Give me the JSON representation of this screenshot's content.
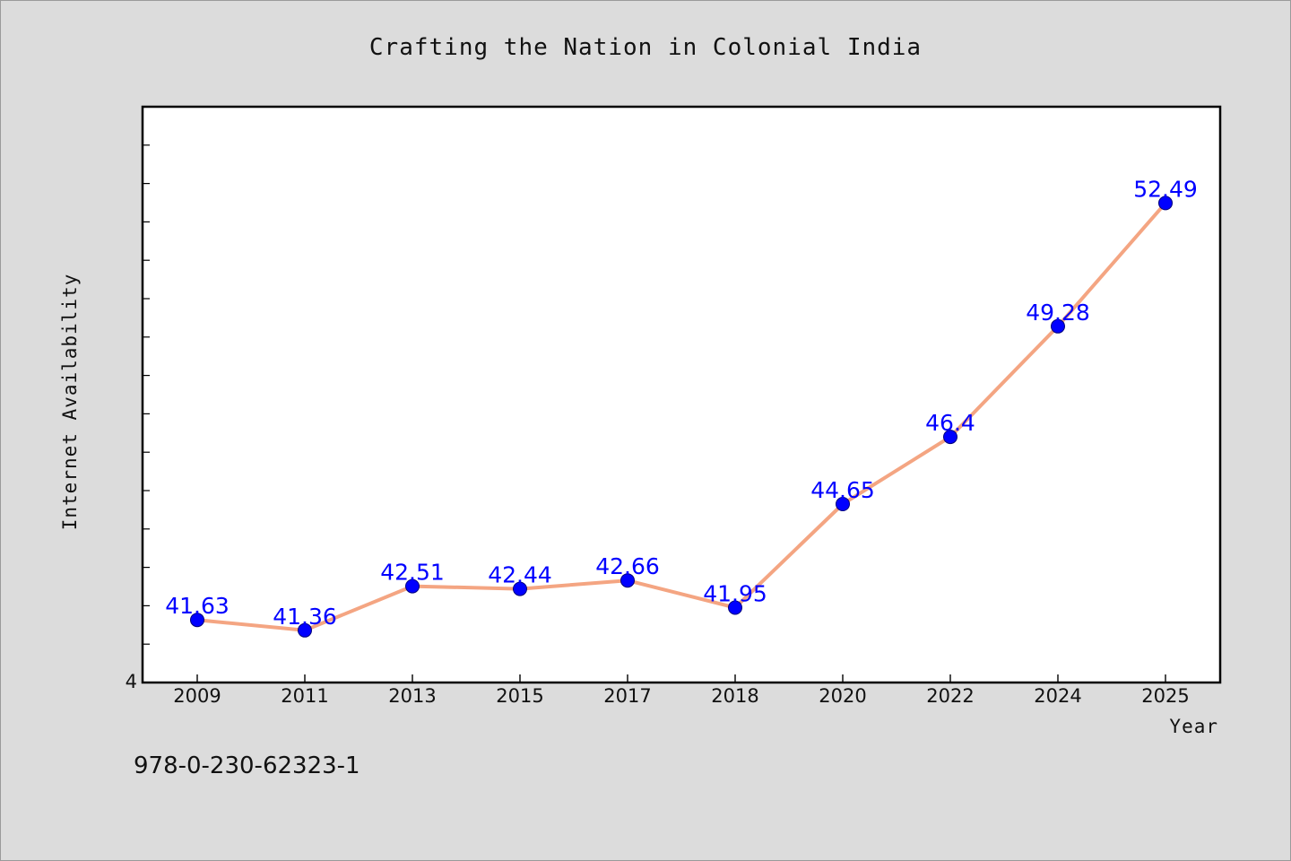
{
  "chart_data": {
    "type": "line",
    "title": "Crafting the Nation in Colonial India",
    "xlabel": "Year",
    "ylabel": "Internet Availability",
    "categories": [
      "2009",
      "2011",
      "2013",
      "2015",
      "2017",
      "2018",
      "2020",
      "2022",
      "2024",
      "2025"
    ],
    "series": [
      {
        "values": [
          41.63,
          41.36,
          42.51,
          42.44,
          42.66,
          41.95,
          44.65,
          46.4,
          49.28,
          52.49
        ]
      }
    ],
    "ylim": [
      40,
      55
    ],
    "y_tick_labels": [
      "4"
    ],
    "data_labels": [
      "41.63",
      "41.36",
      "42.51",
      "42.44",
      "42.66",
      "41.95",
      "44.65",
      "46.4",
      "49.28",
      "52.49"
    ],
    "grid": false,
    "legend": "none",
    "line_color": "#f4a582",
    "marker_color": "#0000ff",
    "label_color": "#0000ff",
    "plot_background": "#ffffff",
    "figure_background": "#dcdcdc"
  },
  "footer": {
    "isbn": "978-0-230-62323-1"
  }
}
